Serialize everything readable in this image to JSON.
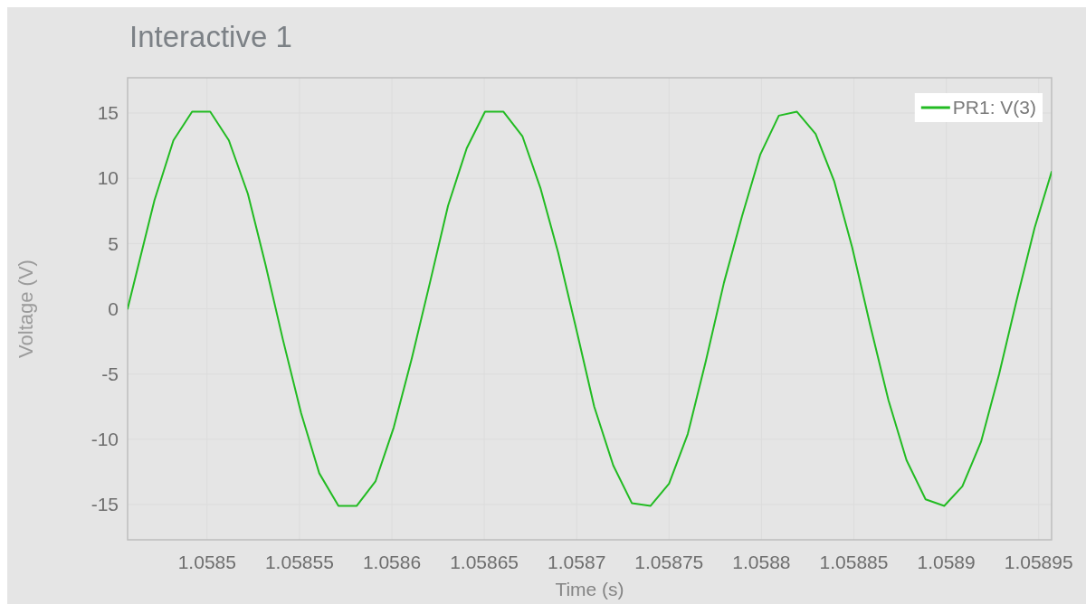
{
  "chart_data": {
    "type": "line",
    "title": "Interactive 1",
    "xlabel": "Time (s)",
    "ylabel": "Voltage (V)",
    "x": [
      1.058457,
      1.0584715,
      1.0584818,
      1.0584919,
      1.0585017,
      1.0585118,
      1.0585221,
      1.0585316,
      1.0585411,
      1.0585509,
      1.0585607,
      1.0585711,
      1.058581,
      1.0585912,
      1.058601,
      1.0586108,
      1.0586206,
      1.0586304,
      1.0586405,
      1.0586504,
      1.0586604,
      1.0586707,
      1.0586805,
      1.05869,
      1.0586997,
      1.0587095,
      1.0587198,
      1.0587299,
      1.05874,
      1.05875,
      1.0587601,
      1.0587699,
      1.0587797,
      1.0587895,
      1.0587993,
      1.0588094,
      1.0588192,
      1.0588293,
      1.0588393,
      1.0588491,
      1.0588589,
      1.0588687,
      1.0588785,
      1.0588888,
      1.0588989,
      1.0589087,
      1.0589188,
      1.0589286,
      1.058938,
      1.0589478,
      1.058957
    ],
    "series": [
      {
        "name": "PR1: V(3)",
        "color": "#22bb22",
        "values": [
          0.0,
          8.3,
          12.9,
          15.1,
          15.1,
          12.9,
          8.8,
          3.4,
          -2.4,
          -8.0,
          -12.6,
          -15.1,
          -15.1,
          -13.2,
          -9.1,
          -3.8,
          2.0,
          7.9,
          12.3,
          15.1,
          15.1,
          13.2,
          9.2,
          4.3,
          -1.5,
          -7.5,
          -12.0,
          -14.9,
          -15.1,
          -13.4,
          -9.6,
          -4.0,
          2.0,
          7.1,
          11.8,
          14.8,
          15.1,
          13.4,
          9.8,
          4.7,
          -1.3,
          -7.0,
          -11.6,
          -14.6,
          -15.1,
          -13.6,
          -10.2,
          -5.0,
          0.6,
          6.2,
          10.5
        ]
      }
    ],
    "xlim": [
      1.058457,
      1.058957
    ],
    "ylim": [
      -17.7,
      17.7
    ],
    "xticks": [
      1.0585,
      1.05855,
      1.0586,
      1.05865,
      1.0587,
      1.05875,
      1.0588,
      1.05885,
      1.0589,
      1.05895
    ],
    "yticks": [
      -15,
      -10,
      -5,
      0,
      5,
      10,
      15
    ],
    "grid": true,
    "legend": "top right",
    "line_style": "solid"
  }
}
